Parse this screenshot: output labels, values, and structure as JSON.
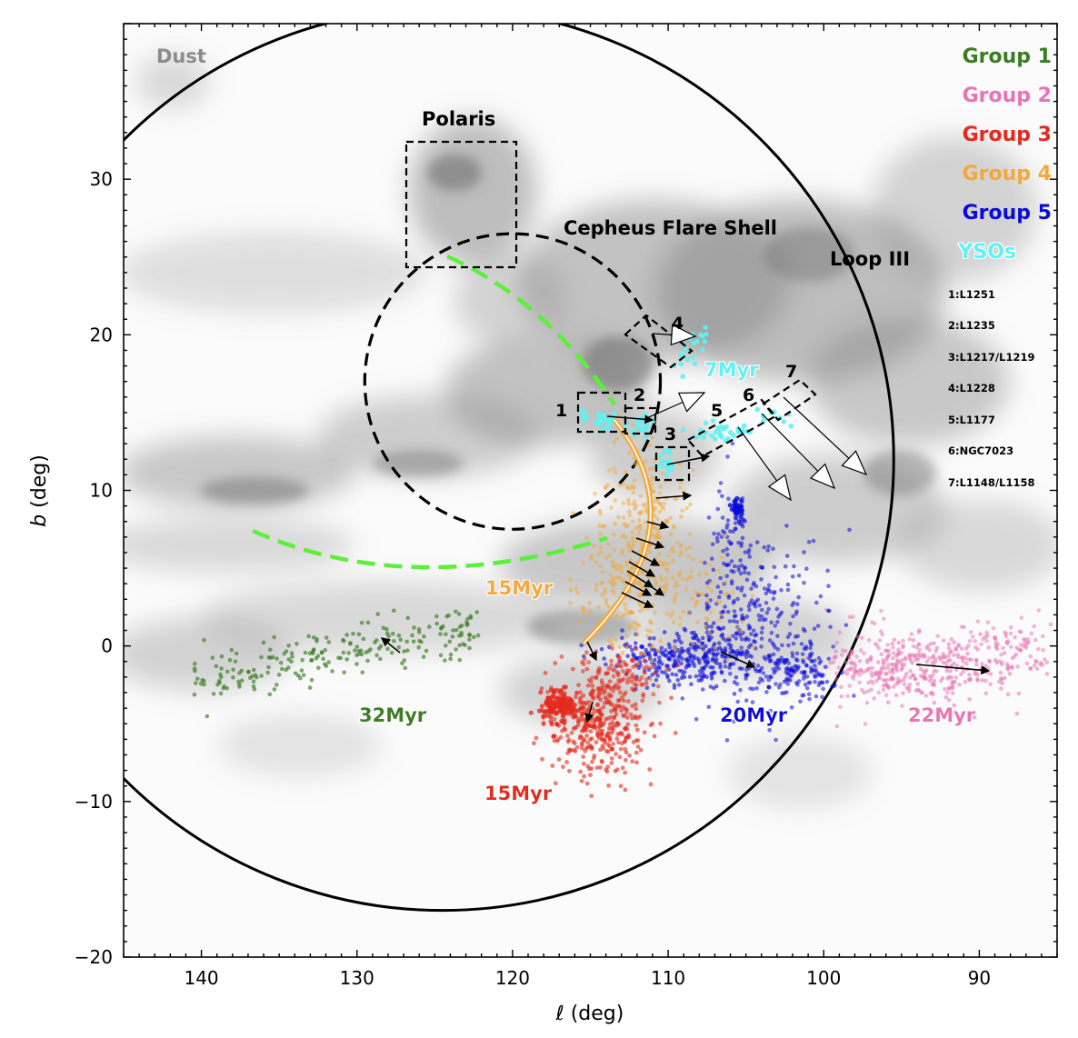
{
  "chart_data": {
    "type": "scatter",
    "xlabel": "ℓ (deg)",
    "ylabel": "b (deg)",
    "xlim": [
      145,
      85
    ],
    "ylim": [
      -20,
      40
    ],
    "x_reversed": true,
    "xticks": [
      140,
      130,
      120,
      110,
      100,
      90
    ],
    "yticks": [
      -20,
      -10,
      0,
      10,
      20,
      30
    ],
    "xtick_labels": [
      "140",
      "130",
      "120",
      "110",
      "100",
      "90"
    ],
    "ytick_labels": [
      "−20",
      "−10",
      "0",
      "10",
      "20",
      "30"
    ],
    "background": "Dust",
    "legend_placement": "top-right",
    "legend": [
      {
        "label": "Group 1",
        "color": "#3a7d22"
      },
      {
        "label": "Group 2",
        "color": "#e874b4"
      },
      {
        "label": "Group 3",
        "color": "#e42a1d"
      },
      {
        "label": "Group 4",
        "color": "#f3a93a"
      },
      {
        "label": "Group 5",
        "color": "#0a0adb"
      },
      {
        "label": "YSOs",
        "color": "#5ff2f2"
      }
    ],
    "cloud_list": [
      "1:L1251",
      "2:L1235",
      "3:L1217/L1219",
      "4:L1228",
      "5:L1177",
      "6:NGC7023",
      "7:L1148/L1158"
    ],
    "series": [
      {
        "name": "Group 1",
        "color": "#3a7d22",
        "l_range": [
          140.5,
          122
        ],
        "b_range": [
          -4,
          2
        ],
        "center": [
          129,
          -0.5
        ],
        "count": 220
      },
      {
        "name": "Group 2",
        "color": "#e874b4",
        "l_range": [
          100,
          85
        ],
        "b_range": [
          -4,
          2.5
        ],
        "center": [
          92,
          -1.5
        ],
        "count": 480
      },
      {
        "name": "Group 3",
        "color": "#e42a1d",
        "l_range": [
          118,
          110
        ],
        "b_range": [
          -10,
          0
        ],
        "center": [
          115,
          -5
        ],
        "count": 620
      },
      {
        "name": "Group 4",
        "color": "#f3a93a",
        "l_range": [
          117,
          104
        ],
        "b_range": [
          0,
          13
        ],
        "center": [
          112,
          5
        ],
        "count": 460
      },
      {
        "name": "Group 5",
        "color": "#0a0adb",
        "l_range": [
          113,
          95
        ],
        "b_range": [
          -4,
          10
        ],
        "center": [
          105,
          0
        ],
        "count": 780
      },
      {
        "name": "YSOs",
        "color": "#5ff2f2",
        "count": 120
      }
    ],
    "age_labels": [
      {
        "text": "32Myr",
        "l": 127,
        "b": -4.5,
        "color": "#3a7d22"
      },
      {
        "text": "22Myr",
        "l": 93,
        "b": -4.5,
        "color": "#e874b4"
      },
      {
        "text": "15Myr",
        "l": 118.5,
        "b": -9.5,
        "color": "#e42a1d"
      },
      {
        "text": "15Myr",
        "l": 118.5,
        "b": 3.5,
        "color": "#f3a93a"
      },
      {
        "text": "20Myr",
        "l": 107.5,
        "b": -4.5,
        "color": "#0a0adb"
      },
      {
        "text": "7Myr",
        "l": 106.5,
        "b": 17.5,
        "color": "#5ff2f2"
      }
    ],
    "annotations": [
      {
        "text": "Polaris",
        "l": 123,
        "b": 33.2
      },
      {
        "text": "Cepheus Flare Shell",
        "l": 111,
        "b": 26.5
      },
      {
        "text": "Loop III",
        "l": 96,
        "b": 24.5
      }
    ],
    "boxes": [
      {
        "label": "Polaris",
        "l": [
          127,
          120
        ],
        "b": [
          24,
          32
        ]
      },
      {
        "label": "1",
        "l": [
          116.3,
          113.2
        ],
        "b": [
          13.6,
          16
        ]
      },
      {
        "label": "2",
        "l": [
          113.2,
          110.3
        ],
        "b": [
          13.7,
          15.3
        ]
      },
      {
        "label": "3",
        "l": [
          111,
          108.9
        ],
        "b": [
          10.7,
          12.8
        ]
      }
    ],
    "circles": [
      {
        "name": "Cepheus Flare Shell",
        "center": [
          120,
          17
        ],
        "radius": 9.5,
        "style": "dashed"
      },
      {
        "name": "Loop III",
        "center": [
          124.5,
          12
        ],
        "radius": 29,
        "style": "solid"
      }
    ]
  },
  "texts": {
    "dust": "Dust",
    "polaris": "Polaris",
    "cepheus": "Cepheus Flare Shell",
    "loop": "Loop III",
    "box1": "1",
    "box2": "2",
    "box3": "3",
    "box4": "4",
    "box5": "5",
    "box6": "6",
    "box7": "7",
    "age1": "32Myr",
    "age2": "22Myr",
    "age3": "15Myr",
    "age4": "15Myr",
    "age5": "20Myr",
    "age6": "7Myr",
    "legend": [
      "Group 1",
      "Group 2",
      "Group 3",
      "Group 4",
      "Group 5",
      "YSOs"
    ],
    "clouds": [
      "1:L1251",
      "2:L1235",
      "3:L1217/L1219",
      "4:L1228",
      "5:L1177",
      "6:NGC7023",
      "7:L1148/L1158"
    ],
    "xlabel_italic": "ℓ",
    "xlabel_rest": " (deg)",
    "ylabel_italic": "b",
    "ylabel_rest": " (deg)"
  }
}
